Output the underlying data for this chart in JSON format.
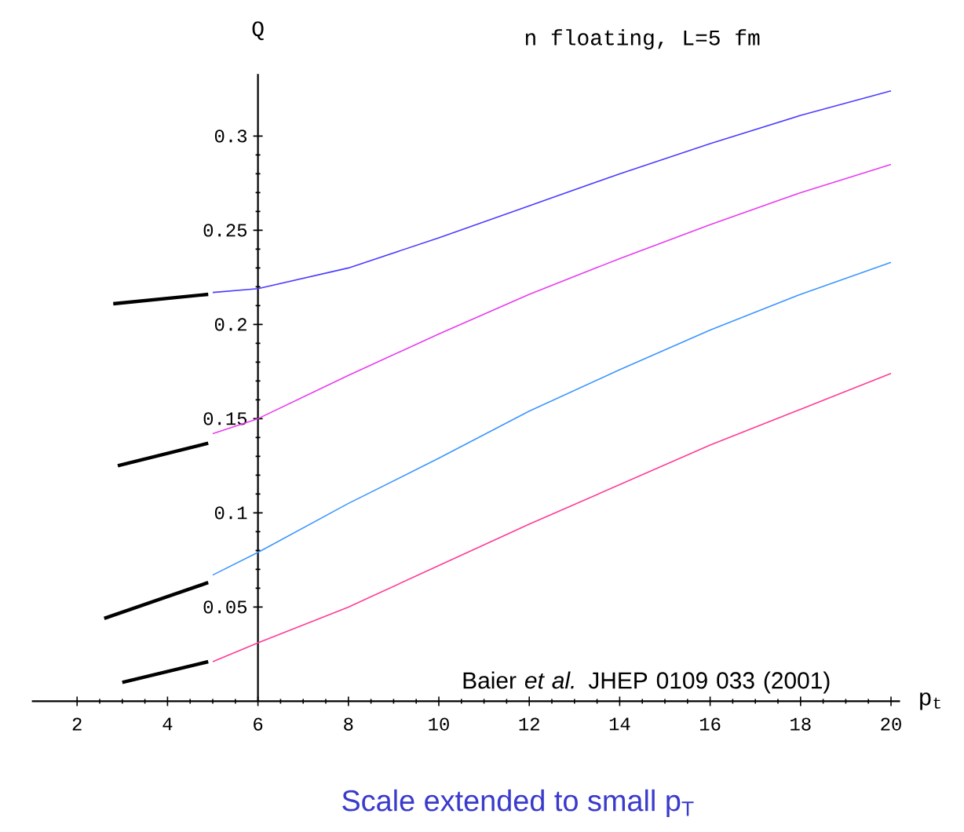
{
  "chart_data": {
    "type": "line",
    "title": "n floating, L=5 fm",
    "xlabel": "p$_{t}$",
    "ylabel": "Q",
    "x": [
      5,
      6,
      8,
      10,
      12,
      14,
      16,
      18,
      20
    ],
    "series": [
      {
        "color": "#4b3cff",
        "values": [
          0.217,
          0.219,
          0.23,
          0.246,
          0.263,
          0.28,
          0.296,
          0.311,
          0.324
        ]
      },
      {
        "color": "#e83cf0",
        "values": [
          0.142,
          0.15,
          0.173,
          0.195,
          0.216,
          0.235,
          0.253,
          0.27,
          0.285
        ]
      },
      {
        "color": "#3c96ff",
        "values": [
          0.067,
          0.079,
          0.105,
          0.129,
          0.154,
          0.176,
          0.197,
          0.216,
          0.233
        ]
      },
      {
        "color": "#ff3c96",
        "values": [
          0.021,
          0.031,
          0.05,
          0.072,
          0.094,
          0.115,
          0.136,
          0.155,
          0.174
        ]
      },
      {
        "color": "#000000",
        "x": [
          2.8,
          4.9
        ],
        "values": [
          0.211,
          0.216
        ]
      },
      {
        "color": "#000000",
        "x": [
          2.9,
          4.9
        ],
        "values": [
          0.125,
          0.137
        ]
      },
      {
        "color": "#000000",
        "x": [
          2.6,
          4.9
        ],
        "values": [
          0.044,
          0.063
        ]
      },
      {
        "color": "#000000",
        "x": [
          3.0,
          4.9
        ],
        "values": [
          0.01,
          0.021
        ]
      }
    ],
    "xlim": [
      1,
      20.2
    ],
    "ylim": [
      0,
      0.333
    ],
    "xticks": [
      2,
      4,
      6,
      8,
      10,
      12,
      14,
      16,
      18,
      20
    ],
    "yticks": [
      0.05,
      0.1,
      0.15,
      0.2,
      0.25,
      0.3
    ],
    "annotations": [
      "Baier *et al.* JHEP 0109 033 (2001)",
      "Scale extended to small p$_{T}$"
    ]
  }
}
